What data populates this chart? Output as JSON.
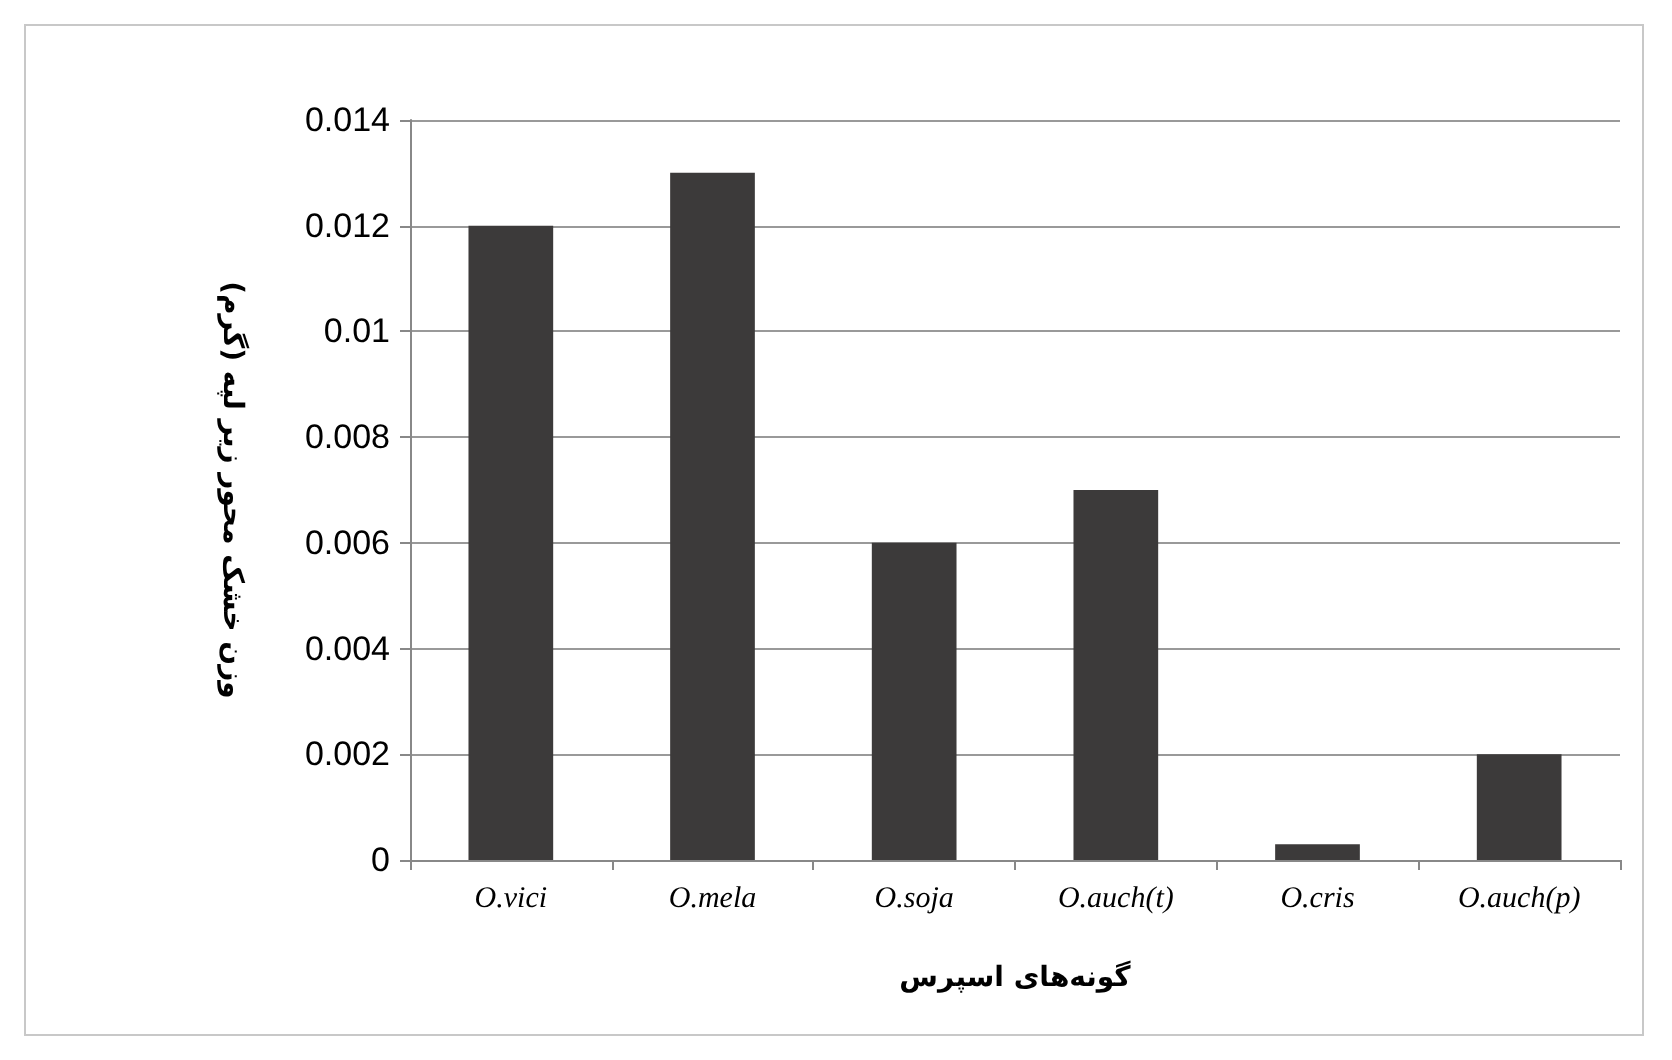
{
  "chart_data": {
    "type": "bar",
    "xlabel": "گونه‌های اسپرس",
    "ylabel": "وزن خشک محور زیر لپه (گرم)",
    "categories": [
      "O.vici",
      "O.mela",
      "O.soja",
      "O.auch(t)",
      "O.cris",
      "O.auch(p)"
    ],
    "values": [
      0.012,
      0.013,
      0.006,
      0.007,
      0.0003,
      0.002
    ],
    "color": "#3c3a3a",
    "ylim": [
      0,
      0.014
    ],
    "yticks": [
      0,
      0.002,
      0.004,
      0.006,
      0.008,
      0.01,
      0.012,
      0.014
    ],
    "grid": "y"
  }
}
